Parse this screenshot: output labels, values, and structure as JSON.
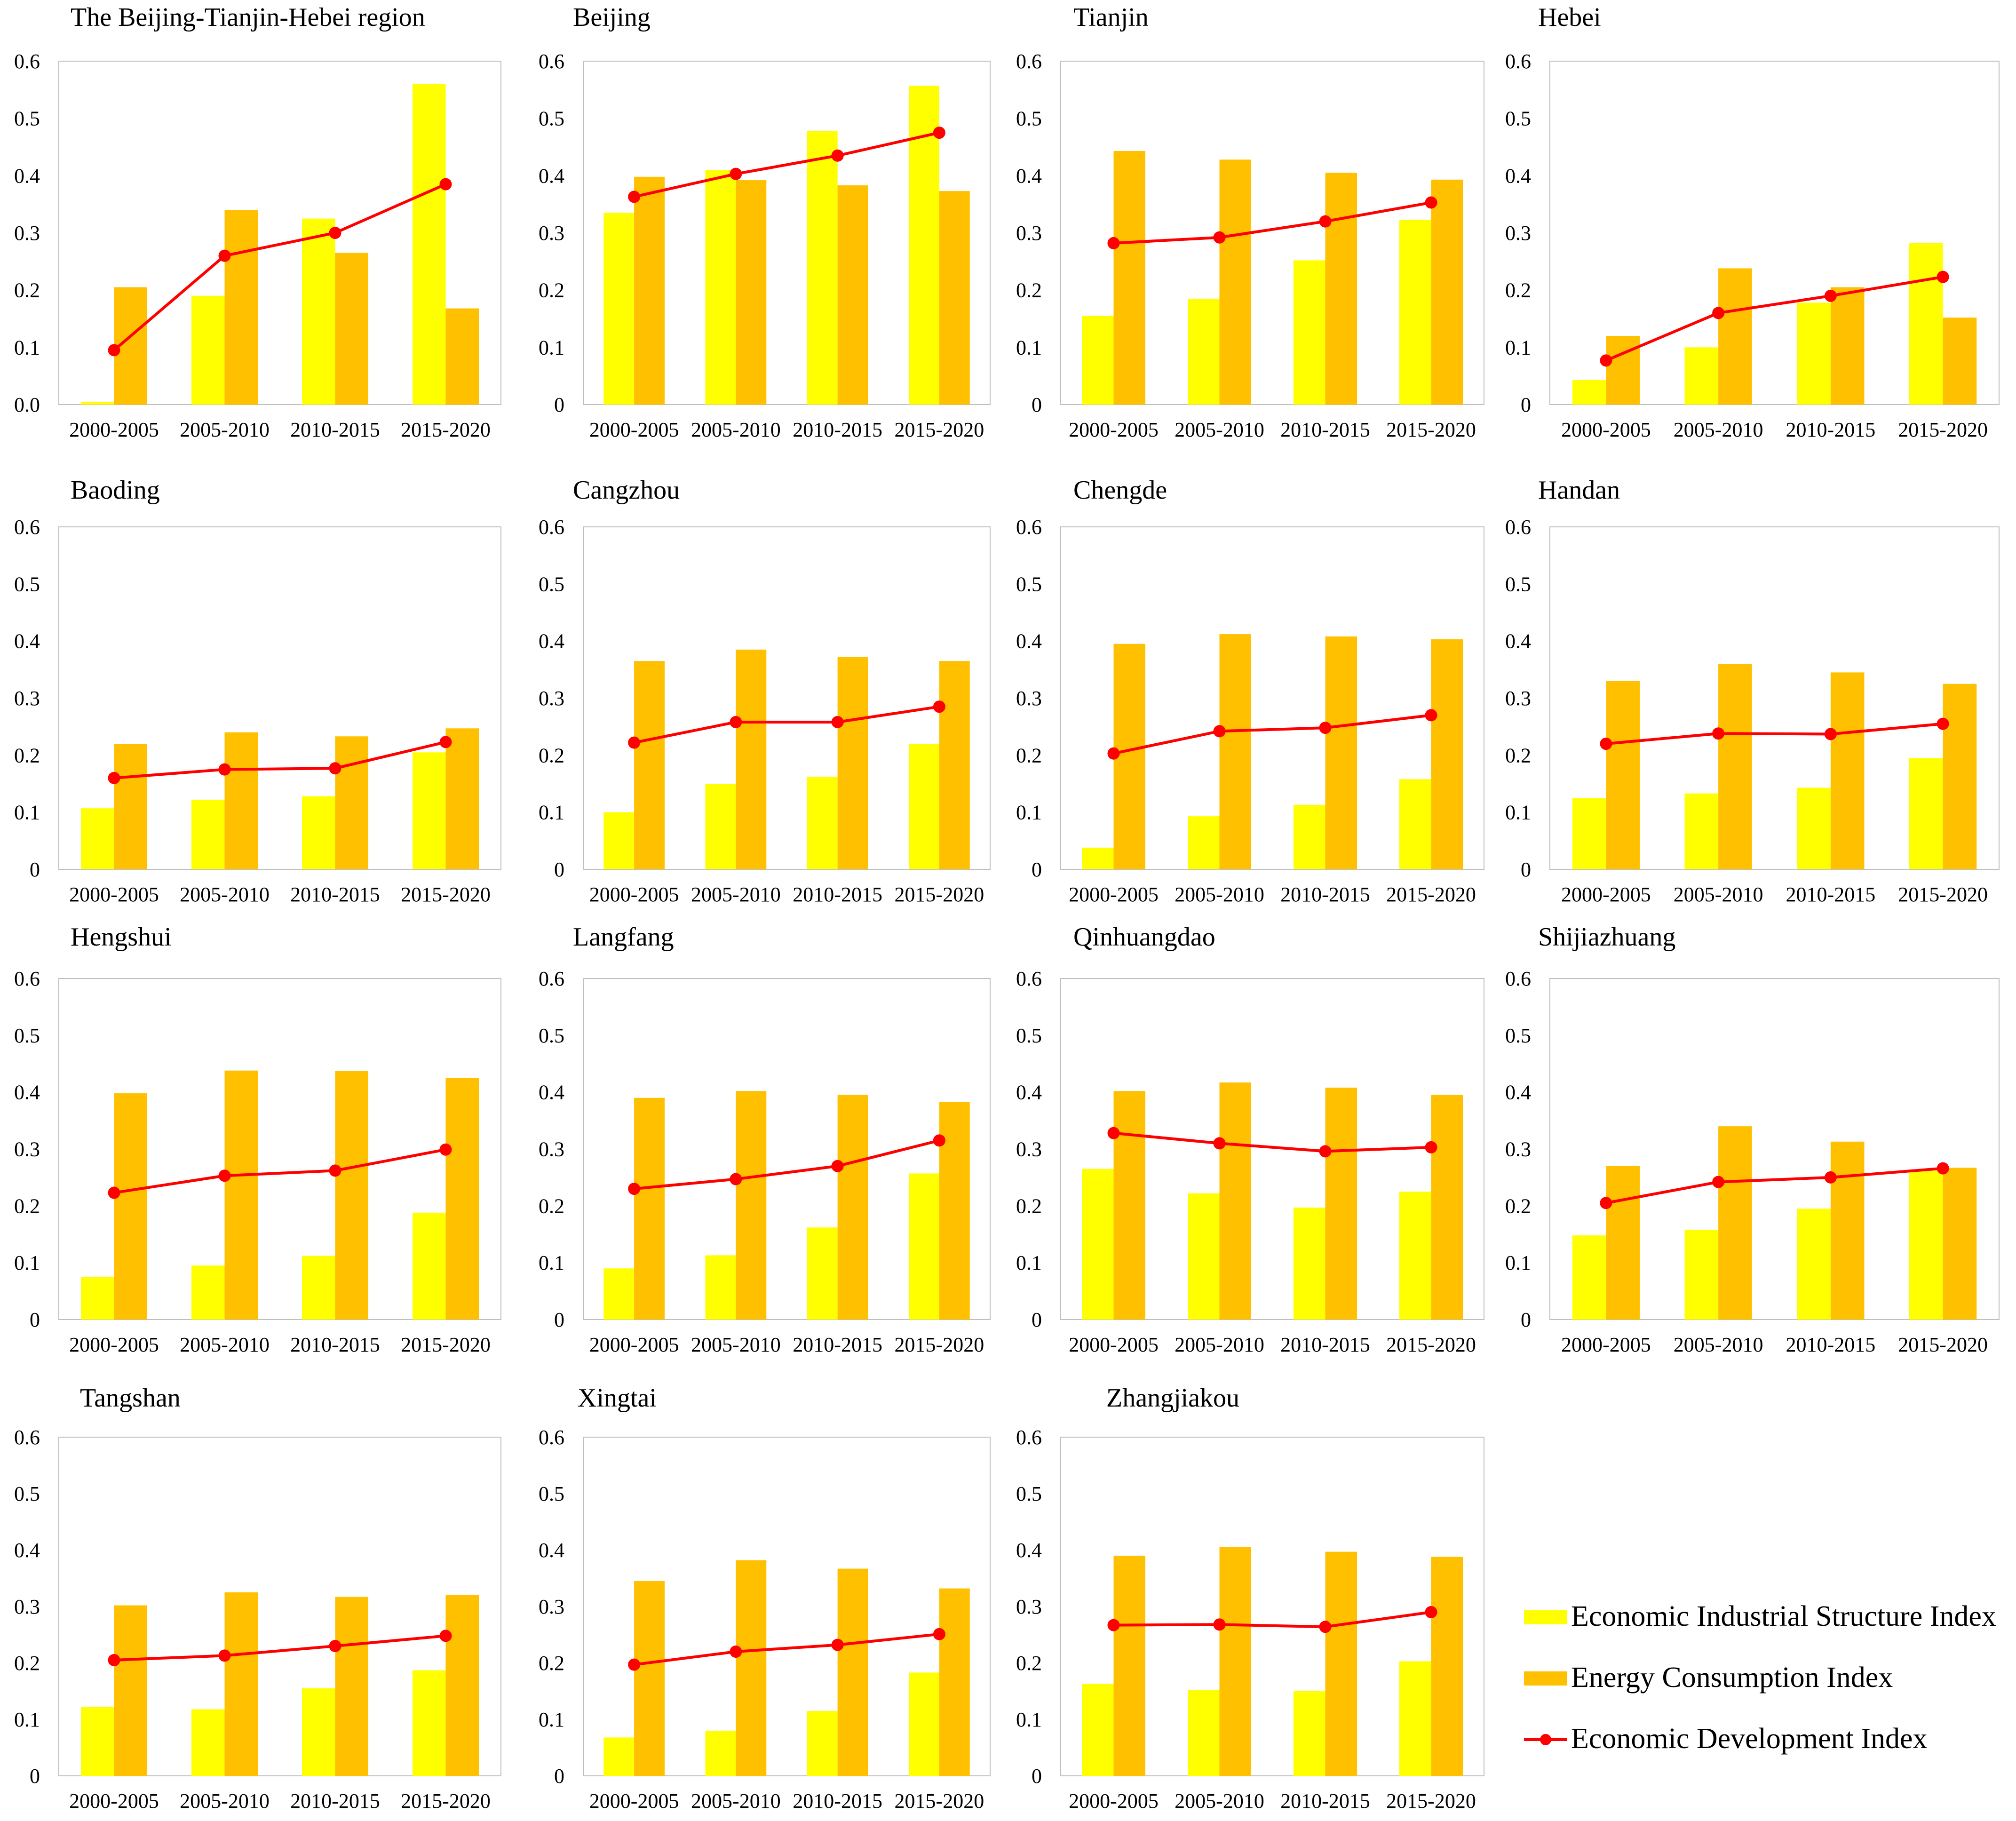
{
  "colors": {
    "industrial": "#FFFF00",
    "energy": "#FFC000",
    "development": "#FF0000",
    "axis": "#BFBFBF",
    "text": "#000000"
  },
  "legend": {
    "items": [
      {
        "key": "industrial",
        "label": "Economic Industrial Structure Index"
      },
      {
        "key": "energy",
        "label": "Energy Consumption Index"
      },
      {
        "key": "development",
        "label": "Economic Development Index"
      }
    ]
  },
  "chart_data": [
    {
      "type": "bar",
      "title": "The Beijing-Tianjin-Hebei region",
      "categories": [
        "2000-2005",
        "2005-2010",
        "2010-2015",
        "2015-2020"
      ],
      "yticks": [
        "0.0",
        "0.1",
        "0.2",
        "0.3",
        "0.4",
        "0.5",
        "0.6"
      ],
      "ylim": [
        0,
        0.6
      ],
      "series": [
        {
          "name": "Economic Industrial Structure Index",
          "kind": "bar",
          "values": [
            0.005,
            0.19,
            0.325,
            0.56
          ]
        },
        {
          "name": "Energy Consumption Index",
          "kind": "bar",
          "values": [
            0.205,
            0.34,
            0.265,
            0.168
          ]
        },
        {
          "name": "Economic Development Index",
          "kind": "line",
          "values": [
            0.095,
            0.26,
            0.3,
            0.385
          ]
        }
      ]
    },
    {
      "type": "bar",
      "title": "Beijing",
      "categories": [
        "2000-2005",
        "2005-2010",
        "2010-2015",
        "2015-2020"
      ],
      "yticks": [
        "0",
        "0.1",
        "0.2",
        "0.3",
        "0.4",
        "0.5",
        "0.6"
      ],
      "ylim": [
        0,
        0.6
      ],
      "series": [
        {
          "name": "Economic Industrial Structure Index",
          "kind": "bar",
          "values": [
            0.335,
            0.41,
            0.478,
            0.557
          ]
        },
        {
          "name": "Energy Consumption Index",
          "kind": "bar",
          "values": [
            0.398,
            0.392,
            0.383,
            0.373
          ]
        },
        {
          "name": "Economic Development Index",
          "kind": "line",
          "values": [
            0.363,
            0.403,
            0.435,
            0.475
          ]
        }
      ]
    },
    {
      "type": "bar",
      "title": "Tianjin",
      "categories": [
        "2000-2005",
        "2005-2010",
        "2010-2015",
        "2015-2020"
      ],
      "yticks": [
        "0",
        "0.1",
        "0.2",
        "0.3",
        "0.4",
        "0.5",
        "0.6"
      ],
      "ylim": [
        0,
        0.6
      ],
      "series": [
        {
          "name": "Economic Industrial Structure Index",
          "kind": "bar",
          "values": [
            0.155,
            0.185,
            0.252,
            0.323
          ]
        },
        {
          "name": "Energy Consumption Index",
          "kind": "bar",
          "values": [
            0.443,
            0.428,
            0.405,
            0.393
          ]
        },
        {
          "name": "Economic Development Index",
          "kind": "line",
          "values": [
            0.282,
            0.292,
            0.32,
            0.353
          ]
        }
      ]
    },
    {
      "type": "bar",
      "title": "Hebei",
      "categories": [
        "2000-2005",
        "2005-2010",
        "2010-2015",
        "2015-2020"
      ],
      "yticks": [
        "0",
        "0.1",
        "0.2",
        "0.3",
        "0.4",
        "0.5",
        "0.6"
      ],
      "ylim": [
        0,
        0.6
      ],
      "series": [
        {
          "name": "Economic Industrial Structure Index",
          "kind": "bar",
          "values": [
            0.043,
            0.1,
            0.178,
            0.282
          ]
        },
        {
          "name": "Energy Consumption Index",
          "kind": "bar",
          "values": [
            0.12,
            0.238,
            0.205,
            0.152
          ]
        },
        {
          "name": "Economic Development Index",
          "kind": "line",
          "values": [
            0.077,
            0.16,
            0.19,
            0.223
          ]
        }
      ]
    },
    {
      "type": "bar",
      "title": "Baoding",
      "categories": [
        "2000-2005",
        "2005-2010",
        "2010-2015",
        "2015-2020"
      ],
      "yticks": [
        "0",
        "0.1",
        "0.2",
        "0.3",
        "0.4",
        "0.5",
        "0.6"
      ],
      "ylim": [
        0,
        0.6
      ],
      "series": [
        {
          "name": "Economic Industrial Structure Index",
          "kind": "bar",
          "values": [
            0.107,
            0.122,
            0.128,
            0.205
          ]
        },
        {
          "name": "Energy Consumption Index",
          "kind": "bar",
          "values": [
            0.22,
            0.24,
            0.233,
            0.247
          ]
        },
        {
          "name": "Economic Development Index",
          "kind": "line",
          "values": [
            0.16,
            0.175,
            0.177,
            0.223
          ]
        }
      ]
    },
    {
      "type": "bar",
      "title": "Cangzhou",
      "categories": [
        "2000-2005",
        "2005-2010",
        "2010-2015",
        "2015-2020"
      ],
      "yticks": [
        "0",
        "0.1",
        "0.2",
        "0.3",
        "0.4",
        "0.5",
        "0.6"
      ],
      "ylim": [
        0,
        0.6
      ],
      "series": [
        {
          "name": "Economic Industrial Structure Index",
          "kind": "bar",
          "values": [
            0.1,
            0.15,
            0.162,
            0.22
          ]
        },
        {
          "name": "Energy Consumption Index",
          "kind": "bar",
          "values": [
            0.365,
            0.385,
            0.372,
            0.365
          ]
        },
        {
          "name": "Economic Development Index",
          "kind": "line",
          "values": [
            0.222,
            0.258,
            0.258,
            0.285
          ]
        }
      ]
    },
    {
      "type": "bar",
      "title": "Chengde",
      "categories": [
        "2000-2005",
        "2005-2010",
        "2010-2015",
        "2015-2020"
      ],
      "yticks": [
        "0",
        "0.1",
        "0.2",
        "0.3",
        "0.4",
        "0.5",
        "0.6"
      ],
      "ylim": [
        0,
        0.6
      ],
      "series": [
        {
          "name": "Economic Industrial Structure Index",
          "kind": "bar",
          "values": [
            0.038,
            0.093,
            0.113,
            0.158
          ]
        },
        {
          "name": "Energy Consumption Index",
          "kind": "bar",
          "values": [
            0.395,
            0.412,
            0.408,
            0.403
          ]
        },
        {
          "name": "Economic Development Index",
          "kind": "line",
          "values": [
            0.203,
            0.242,
            0.248,
            0.27
          ]
        }
      ]
    },
    {
      "type": "bar",
      "title": "Handan",
      "categories": [
        "2000-2005",
        "2005-2010",
        "2010-2015",
        "2015-2020"
      ],
      "yticks": [
        "0",
        "0.1",
        "0.2",
        "0.3",
        "0.4",
        "0.5",
        "0.6"
      ],
      "ylim": [
        0,
        0.6
      ],
      "series": [
        {
          "name": "Economic Industrial Structure Index",
          "kind": "bar",
          "values": [
            0.125,
            0.133,
            0.143,
            0.195
          ]
        },
        {
          "name": "Energy Consumption Index",
          "kind": "bar",
          "values": [
            0.33,
            0.36,
            0.345,
            0.325
          ]
        },
        {
          "name": "Economic Development Index",
          "kind": "line",
          "values": [
            0.22,
            0.238,
            0.237,
            0.255
          ]
        }
      ]
    },
    {
      "type": "bar",
      "title": "Hengshui",
      "categories": [
        "2000-2005",
        "2005-2010",
        "2010-2015",
        "2015-2020"
      ],
      "yticks": [
        "0",
        "0.1",
        "0.2",
        "0.3",
        "0.4",
        "0.5",
        "0.6"
      ],
      "ylim": [
        0,
        0.6
      ],
      "series": [
        {
          "name": "Economic Industrial Structure Index",
          "kind": "bar",
          "values": [
            0.075,
            0.095,
            0.112,
            0.188
          ]
        },
        {
          "name": "Energy Consumption Index",
          "kind": "bar",
          "values": [
            0.398,
            0.438,
            0.437,
            0.425
          ]
        },
        {
          "name": "Economic Development Index",
          "kind": "line",
          "values": [
            0.223,
            0.253,
            0.262,
            0.299
          ]
        }
      ]
    },
    {
      "type": "bar",
      "title": "Langfang",
      "categories": [
        "2000-2005",
        "2005-2010",
        "2010-2015",
        "2015-2020"
      ],
      "yticks": [
        "0",
        "0.1",
        "0.2",
        "0.3",
        "0.4",
        "0.5",
        "0.6"
      ],
      "ylim": [
        0,
        0.6
      ],
      "series": [
        {
          "name": "Economic Industrial Structure Index",
          "kind": "bar",
          "values": [
            0.09,
            0.113,
            0.162,
            0.257
          ]
        },
        {
          "name": "Energy Consumption Index",
          "kind": "bar",
          "values": [
            0.39,
            0.402,
            0.395,
            0.383
          ]
        },
        {
          "name": "Economic Development Index",
          "kind": "line",
          "values": [
            0.23,
            0.247,
            0.27,
            0.315
          ]
        }
      ]
    },
    {
      "type": "bar",
      "title": "Qinhuangdao",
      "categories": [
        "2000-2005",
        "2005-2010",
        "2010-2015",
        "2015-2020"
      ],
      "yticks": [
        "0",
        "0.1",
        "0.2",
        "0.3",
        "0.4",
        "0.5",
        "0.6"
      ],
      "ylim": [
        0,
        0.6
      ],
      "series": [
        {
          "name": "Economic Industrial Structure Index",
          "kind": "bar",
          "values": [
            0.265,
            0.222,
            0.197,
            0.225
          ]
        },
        {
          "name": "Energy Consumption Index",
          "kind": "bar",
          "values": [
            0.402,
            0.417,
            0.408,
            0.395
          ]
        },
        {
          "name": "Economic Development Index",
          "kind": "line",
          "values": [
            0.328,
            0.31,
            0.296,
            0.303
          ]
        }
      ]
    },
    {
      "type": "bar",
      "title": "Shijiazhuang",
      "categories": [
        "2000-2005",
        "2005-2010",
        "2010-2015",
        "2015-2020"
      ],
      "yticks": [
        "0",
        "0.1",
        "0.2",
        "0.3",
        "0.4",
        "0.5",
        "0.6"
      ],
      "ylim": [
        0,
        0.6
      ],
      "series": [
        {
          "name": "Economic Industrial Structure Index",
          "kind": "bar",
          "values": [
            0.148,
            0.158,
            0.195,
            0.262
          ]
        },
        {
          "name": "Energy Consumption Index",
          "kind": "bar",
          "values": [
            0.27,
            0.34,
            0.313,
            0.267
          ]
        },
        {
          "name": "Economic Development Index",
          "kind": "line",
          "values": [
            0.205,
            0.242,
            0.25,
            0.266
          ]
        }
      ]
    },
    {
      "type": "bar",
      "title": "Tangshan",
      "categories": [
        "2000-2005",
        "2005-2010",
        "2010-2015",
        "2015-2020"
      ],
      "yticks": [
        "0",
        "0.1",
        "0.2",
        "0.3",
        "0.4",
        "0.5",
        "0.6"
      ],
      "ylim": [
        0,
        0.6
      ],
      "series": [
        {
          "name": "Economic Industrial Structure Index",
          "kind": "bar",
          "values": [
            0.122,
            0.118,
            0.155,
            0.187
          ]
        },
        {
          "name": "Energy Consumption Index",
          "kind": "bar",
          "values": [
            0.302,
            0.325,
            0.317,
            0.32
          ]
        },
        {
          "name": "Economic Development Index",
          "kind": "line",
          "values": [
            0.205,
            0.213,
            0.23,
            0.248
          ]
        }
      ]
    },
    {
      "type": "bar",
      "title": "Xingtai",
      "categories": [
        "2000-2005",
        "2005-2010",
        "2010-2015",
        "2015-2020"
      ],
      "yticks": [
        "0",
        "0.1",
        "0.2",
        "0.3",
        "0.4",
        "0.5",
        "0.6"
      ],
      "ylim": [
        0,
        0.6
      ],
      "series": [
        {
          "name": "Economic Industrial Structure Index",
          "kind": "bar",
          "values": [
            0.068,
            0.08,
            0.115,
            0.183
          ]
        },
        {
          "name": "Energy Consumption Index",
          "kind": "bar",
          "values": [
            0.345,
            0.382,
            0.367,
            0.332
          ]
        },
        {
          "name": "Economic Development Index",
          "kind": "line",
          "values": [
            0.197,
            0.22,
            0.232,
            0.251
          ]
        }
      ]
    },
    {
      "type": "bar",
      "title": "Zhangjiakou",
      "categories": [
        "2000-2005",
        "2005-2010",
        "2010-2015",
        "2015-2020"
      ],
      "yticks": [
        "0",
        "0.1",
        "0.2",
        "0.3",
        "0.4",
        "0.5",
        "0.6"
      ],
      "ylim": [
        0,
        0.6
      ],
      "series": [
        {
          "name": "Economic Industrial Structure Index",
          "kind": "bar",
          "values": [
            0.163,
            0.152,
            0.15,
            0.203
          ]
        },
        {
          "name": "Energy Consumption Index",
          "kind": "bar",
          "values": [
            0.39,
            0.405,
            0.397,
            0.388
          ]
        },
        {
          "name": "Economic Development Index",
          "kind": "line",
          "values": [
            0.267,
            0.268,
            0.264,
            0.29
          ]
        }
      ]
    }
  ]
}
